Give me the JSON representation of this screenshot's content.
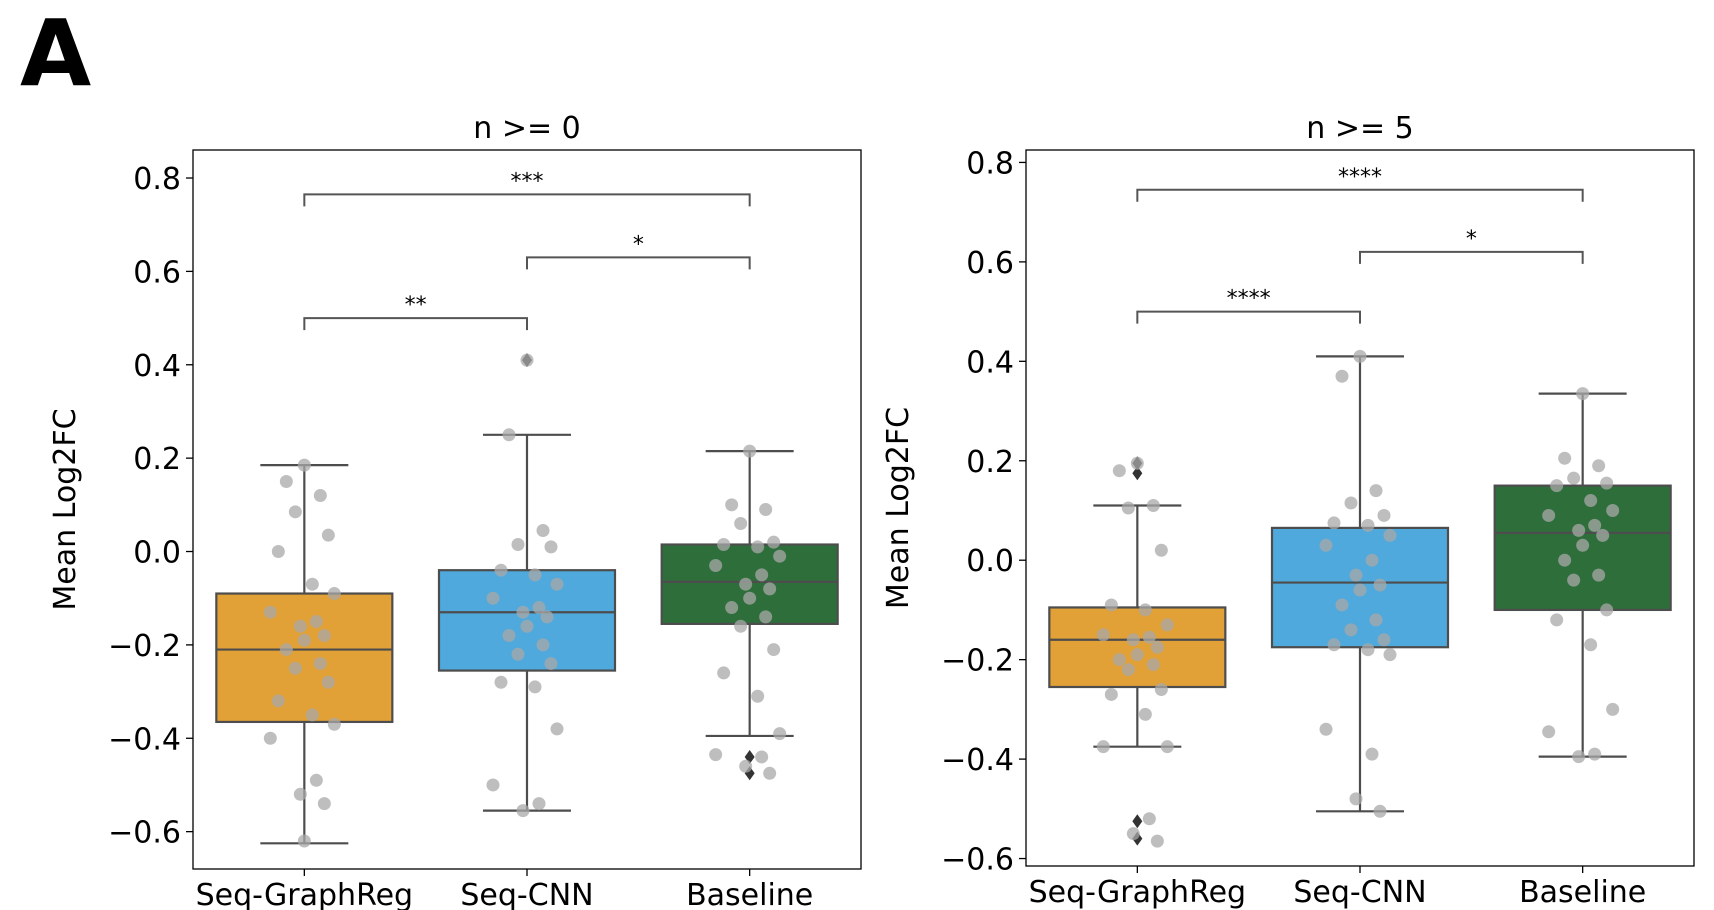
{
  "panel_label": "A",
  "colors": {
    "Seq-GraphReg": "#E1A137",
    "Seq-CNN": "#4FA9DC",
    "Baseline": "#2E6E3B",
    "box_edge": "#4d4d4d",
    "points": "#a8a8a8",
    "outlier": "#333333"
  },
  "chart_data": [
    {
      "type": "box",
      "title": "n >= 0",
      "ylabel": "Mean Log2FC",
      "xlabel": "",
      "ylim": [
        -0.68,
        0.86
      ],
      "yticks": [
        -0.6,
        -0.4,
        -0.2,
        0.0,
        0.2,
        0.4,
        0.6,
        0.8
      ],
      "ytick_labels": [
        "−0.6",
        "−0.4",
        "−0.2",
        "0.0",
        "0.2",
        "0.4",
        "0.6",
        "0.8"
      ],
      "categories": [
        "Seq-GraphReg",
        "Seq-CNN",
        "Baseline"
      ],
      "boxes": [
        {
          "q1": -0.365,
          "median": -0.21,
          "q3": -0.09,
          "whisker_low": -0.625,
          "whisker_high": 0.185,
          "outliers": []
        },
        {
          "q1": -0.255,
          "median": -0.13,
          "q3": -0.04,
          "whisker_low": -0.555,
          "whisker_high": 0.25,
          "outliers": [
            0.41
          ]
        },
        {
          "q1": -0.155,
          "median": -0.065,
          "q3": 0.015,
          "whisker_low": -0.395,
          "whisker_high": 0.215,
          "outliers": [
            -0.44,
            -0.475
          ]
        }
      ],
      "points": [
        [
          0.185,
          0.15,
          0.12,
          0.085,
          0.035,
          0.0,
          -0.07,
          -0.09,
          -0.13,
          -0.15,
          -0.16,
          -0.18,
          -0.19,
          -0.21,
          -0.24,
          -0.25,
          -0.28,
          -0.32,
          -0.35,
          -0.37,
          -0.4,
          -0.49,
          -0.52,
          -0.54,
          -0.62
        ],
        [
          0.41,
          0.25,
          0.045,
          0.015,
          0.01,
          -0.04,
          -0.05,
          -0.07,
          -0.1,
          -0.12,
          -0.13,
          -0.14,
          -0.16,
          -0.18,
          -0.2,
          -0.22,
          -0.24,
          -0.28,
          -0.29,
          -0.38,
          -0.5,
          -0.54,
          -0.555
        ],
        [
          0.215,
          0.1,
          0.09,
          0.06,
          0.02,
          0.015,
          0.01,
          -0.01,
          -0.03,
          -0.05,
          -0.07,
          -0.08,
          -0.1,
          -0.12,
          -0.14,
          -0.16,
          -0.21,
          -0.26,
          -0.31,
          -0.39,
          -0.435,
          -0.44,
          -0.46,
          -0.475
        ]
      ],
      "brackets": [
        {
          "from": 0,
          "to": 1,
          "y": 0.5,
          "label": "**"
        },
        {
          "from": 1,
          "to": 2,
          "y": 0.63,
          "label": "*"
        },
        {
          "from": 0,
          "to": 2,
          "y": 0.765,
          "label": "***"
        }
      ]
    },
    {
      "type": "box",
      "title": "n >= 5",
      "ylabel": "Mean Log2FC",
      "xlabel": "",
      "ylim": [
        -0.615,
        0.825
      ],
      "yticks": [
        -0.6,
        -0.4,
        -0.2,
        0.0,
        0.2,
        0.4,
        0.6,
        0.8
      ],
      "ytick_labels": [
        "−0.6",
        "−0.4",
        "−0.2",
        "0.0",
        "0.2",
        "0.4",
        "0.6",
        "0.8"
      ],
      "categories": [
        "Seq-GraphReg",
        "Seq-CNN",
        "Baseline"
      ],
      "boxes": [
        {
          "q1": -0.255,
          "median": -0.16,
          "q3": -0.095,
          "whisker_low": -0.375,
          "whisker_high": 0.11,
          "outliers": [
            0.195,
            0.175,
            -0.525,
            -0.56
          ]
        },
        {
          "q1": -0.175,
          "median": -0.045,
          "q3": 0.065,
          "whisker_low": -0.505,
          "whisker_high": 0.41,
          "outliers": []
        },
        {
          "q1": -0.1,
          "median": 0.055,
          "q3": 0.15,
          "whisker_low": -0.395,
          "whisker_high": 0.335,
          "outliers": []
        }
      ],
      "points": [
        [
          0.195,
          0.18,
          0.11,
          0.105,
          0.02,
          -0.09,
          -0.1,
          -0.13,
          -0.15,
          -0.155,
          -0.16,
          -0.175,
          -0.19,
          -0.2,
          -0.21,
          -0.22,
          -0.26,
          -0.27,
          -0.31,
          -0.375,
          -0.375,
          -0.52,
          -0.55,
          -0.565
        ],
        [
          0.41,
          0.37,
          0.14,
          0.115,
          0.09,
          0.075,
          0.07,
          0.05,
          0.03,
          0.0,
          -0.03,
          -0.05,
          -0.06,
          -0.09,
          -0.12,
          -0.14,
          -0.16,
          -0.17,
          -0.18,
          -0.19,
          -0.34,
          -0.39,
          -0.48,
          -0.505
        ],
        [
          0.335,
          0.205,
          0.19,
          0.165,
          0.155,
          0.15,
          0.12,
          0.1,
          0.09,
          0.07,
          0.06,
          0.05,
          0.03,
          0.0,
          -0.03,
          -0.04,
          -0.1,
          -0.12,
          -0.17,
          -0.3,
          -0.345,
          -0.39,
          -0.395
        ]
      ],
      "brackets": [
        {
          "from": 0,
          "to": 1,
          "y": 0.5,
          "label": "****"
        },
        {
          "from": 1,
          "to": 2,
          "y": 0.62,
          "label": "*"
        },
        {
          "from": 0,
          "to": 2,
          "y": 0.745,
          "label": "****"
        }
      ]
    }
  ]
}
